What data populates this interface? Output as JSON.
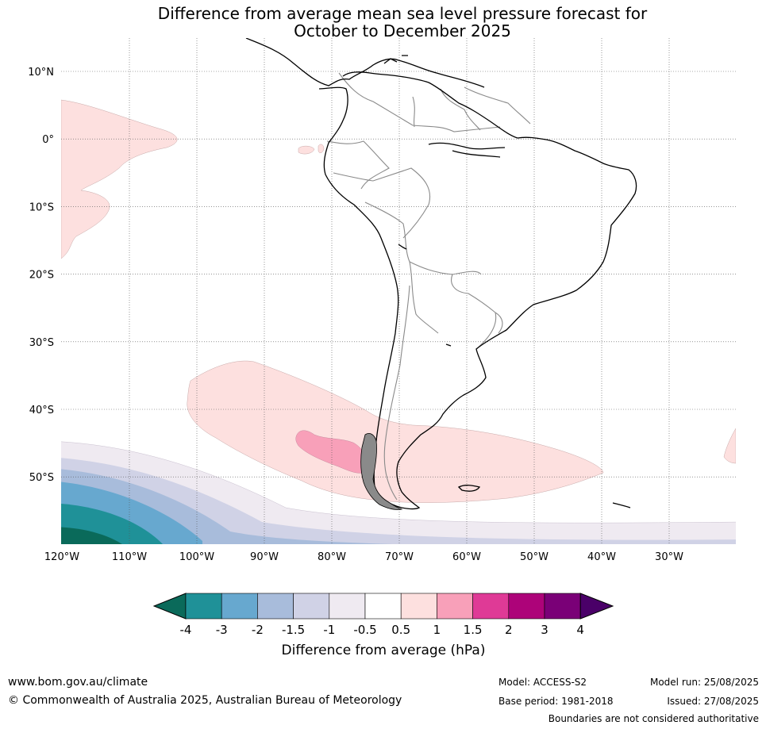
{
  "title": {
    "line1": "Difference from average mean sea level pressure forecast for",
    "line2": "October to December 2025"
  },
  "map": {
    "lat_labels": [
      "10°N",
      "0°",
      "10°S",
      "20°S",
      "30°S",
      "40°S",
      "50°S"
    ],
    "lon_labels": [
      "120°W",
      "110°W",
      "100°W",
      "90°W",
      "80°W",
      "70°W",
      "60°W",
      "50°W",
      "40°W",
      "30°W"
    ]
  },
  "colorbar": {
    "tick_labels": [
      "-4",
      "-3",
      "-2",
      "-1.5",
      "-1",
      "-0.5",
      "0.5",
      "1",
      "1.5",
      "2",
      "3",
      "4"
    ],
    "label": "Difference from average (hPa)",
    "colors": [
      "#0a6a5a",
      "#1f9198",
      "#67a8cf",
      "#a8bcdb",
      "#d0d2e6",
      "#efeaf1",
      "#ffffff",
      "#fde0df",
      "#f8a0b9",
      "#df3a96",
      "#ad0379",
      "#7a0077",
      "#4a0068"
    ]
  },
  "footer": {
    "website": "www.bom.gov.au/climate",
    "copyright": "© Commonwealth of Australia 2025, Australian Bureau of Meteorology",
    "model": "Model: ACCESS-S2",
    "base_period": "Base period: 1981-2018",
    "model_run": "Model run: 25/08/2025",
    "issued": "Issued: 27/08/2025",
    "disclaimer": "Boundaries are not considered authoritative"
  }
}
